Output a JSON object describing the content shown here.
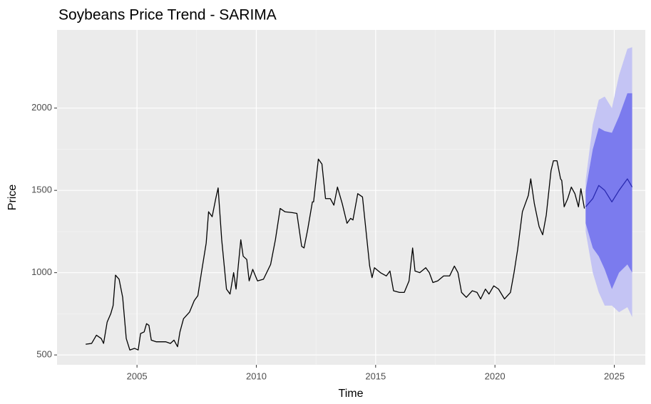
{
  "chart_data": {
    "type": "line",
    "title": "Soybeans Price Trend - SARIMA",
    "xlabel": "Time",
    "ylabel": "Price",
    "xlim": [
      2001.65,
      2026.3
    ],
    "ylim": [
      440,
      2475
    ],
    "xticks": [
      2005,
      2010,
      2015,
      2020,
      2025
    ],
    "yticks": [
      500,
      1000,
      1500,
      2000
    ],
    "grid": true,
    "minor_grid": true,
    "bands": [
      {
        "color": "#c4c4f4",
        "x": [
          2023.8,
          2024.1,
          2024.35,
          2024.6,
          2024.9,
          2025.2,
          2025.55,
          2025.75
        ],
        "lower": [
          1250,
          1000,
          880,
          800,
          800,
          760,
          790,
          730
        ],
        "upper": [
          1560,
          1900,
          2050,
          2070,
          2000,
          2200,
          2360,
          2370
        ]
      },
      {
        "color": "#7b7bee",
        "x": [
          2023.8,
          2024.1,
          2024.35,
          2024.6,
          2024.9,
          2025.2,
          2025.55,
          2025.75
        ],
        "lower": [
          1300,
          1150,
          1100,
          1020,
          900,
          1000,
          1050,
          1000
        ],
        "upper": [
          1500,
          1750,
          1880,
          1860,
          1850,
          1950,
          2090,
          2090
        ]
      }
    ],
    "series": [
      {
        "color": "#000000",
        "x": [
          2002.85,
          2003.1,
          2003.3,
          2003.5,
          2003.6,
          2003.75,
          2003.9,
          2004.0,
          2004.1,
          2004.25,
          2004.4,
          2004.55,
          2004.7,
          2004.9,
          2005.05,
          2005.15,
          2005.3,
          2005.4,
          2005.5,
          2005.6,
          2005.8,
          2006.0,
          2006.2,
          2006.4,
          2006.55,
          2006.7,
          2006.8,
          2006.95,
          2007.2,
          2007.4,
          2007.55,
          2007.7,
          2007.9,
          2008.0,
          2008.15,
          2008.3,
          2008.4,
          2008.55,
          2008.75,
          2008.9,
          2009.05,
          2009.15,
          2009.35,
          2009.45,
          2009.6,
          2009.7,
          2009.85,
          2010.05,
          2010.3,
          2010.6,
          2010.8,
          2011.0,
          2011.2,
          2011.5,
          2011.7,
          2011.9,
          2012.0,
          2012.15,
          2012.35,
          2012.4,
          2012.6,
          2012.75,
          2012.9,
          2013.1,
          2013.25,
          2013.4,
          2013.6,
          2013.8,
          2013.95,
          2014.05,
          2014.25,
          2014.45,
          2014.55,
          2014.75,
          2014.85,
          2014.95,
          2015.2,
          2015.45,
          2015.6,
          2015.75,
          2016.0,
          2016.2,
          2016.4,
          2016.55,
          2016.65,
          2016.85,
          2017.1,
          2017.25,
          2017.4,
          2017.6,
          2017.85,
          2018.1,
          2018.3,
          2018.45,
          2018.6,
          2018.8,
          2019.05,
          2019.25,
          2019.4,
          2019.6,
          2019.75,
          2019.95,
          2020.15,
          2020.4,
          2020.65,
          2020.8,
          2020.95,
          2021.15,
          2021.4,
          2021.5,
          2021.65,
          2021.85,
          2022.0,
          2022.15,
          2022.35,
          2022.45,
          2022.6,
          2022.75,
          2022.8,
          2022.9,
          2023.05,
          2023.2,
          2023.35,
          2023.5,
          2023.6,
          2023.75
        ],
        "values": [
          565,
          570,
          620,
          600,
          570,
          700,
          750,
          800,
          985,
          960,
          850,
          600,
          530,
          540,
          530,
          630,
          640,
          690,
          680,
          590,
          580,
          580,
          580,
          570,
          590,
          550,
          640,
          720,
          760,
          830,
          860,
          1000,
          1180,
          1370,
          1340,
          1450,
          1515,
          1200,
          900,
          870,
          1000,
          900,
          1200,
          1100,
          1080,
          950,
          1020,
          950,
          960,
          1050,
          1200,
          1390,
          1370,
          1365,
          1360,
          1160,
          1150,
          1260,
          1430,
          1430,
          1690,
          1660,
          1450,
          1450,
          1410,
          1520,
          1420,
          1300,
          1330,
          1320,
          1480,
          1460,
          1320,
          1040,
          970,
          1030,
          1000,
          980,
          1010,
          890,
          880,
          880,
          950,
          1150,
          1010,
          1000,
          1030,
          1000,
          940,
          950,
          980,
          980,
          1040,
          1000,
          880,
          850,
          890,
          880,
          840,
          900,
          870,
          920,
          900,
          840,
          880,
          1000,
          1140,
          1370,
          1470,
          1570,
          1420,
          1280,
          1230,
          1350,
          1620,
          1680,
          1680,
          1570,
          1560,
          1400,
          1450,
          1520,
          1480,
          1400,
          1510,
          1390
        ]
      },
      {
        "color": "#2a2ab0",
        "x": [
          2023.8,
          2024.1,
          2024.35,
          2024.6,
          2024.9,
          2025.2,
          2025.55,
          2025.75
        ],
        "values": [
          1400,
          1450,
          1530,
          1500,
          1430,
          1500,
          1570,
          1520
        ]
      }
    ]
  }
}
